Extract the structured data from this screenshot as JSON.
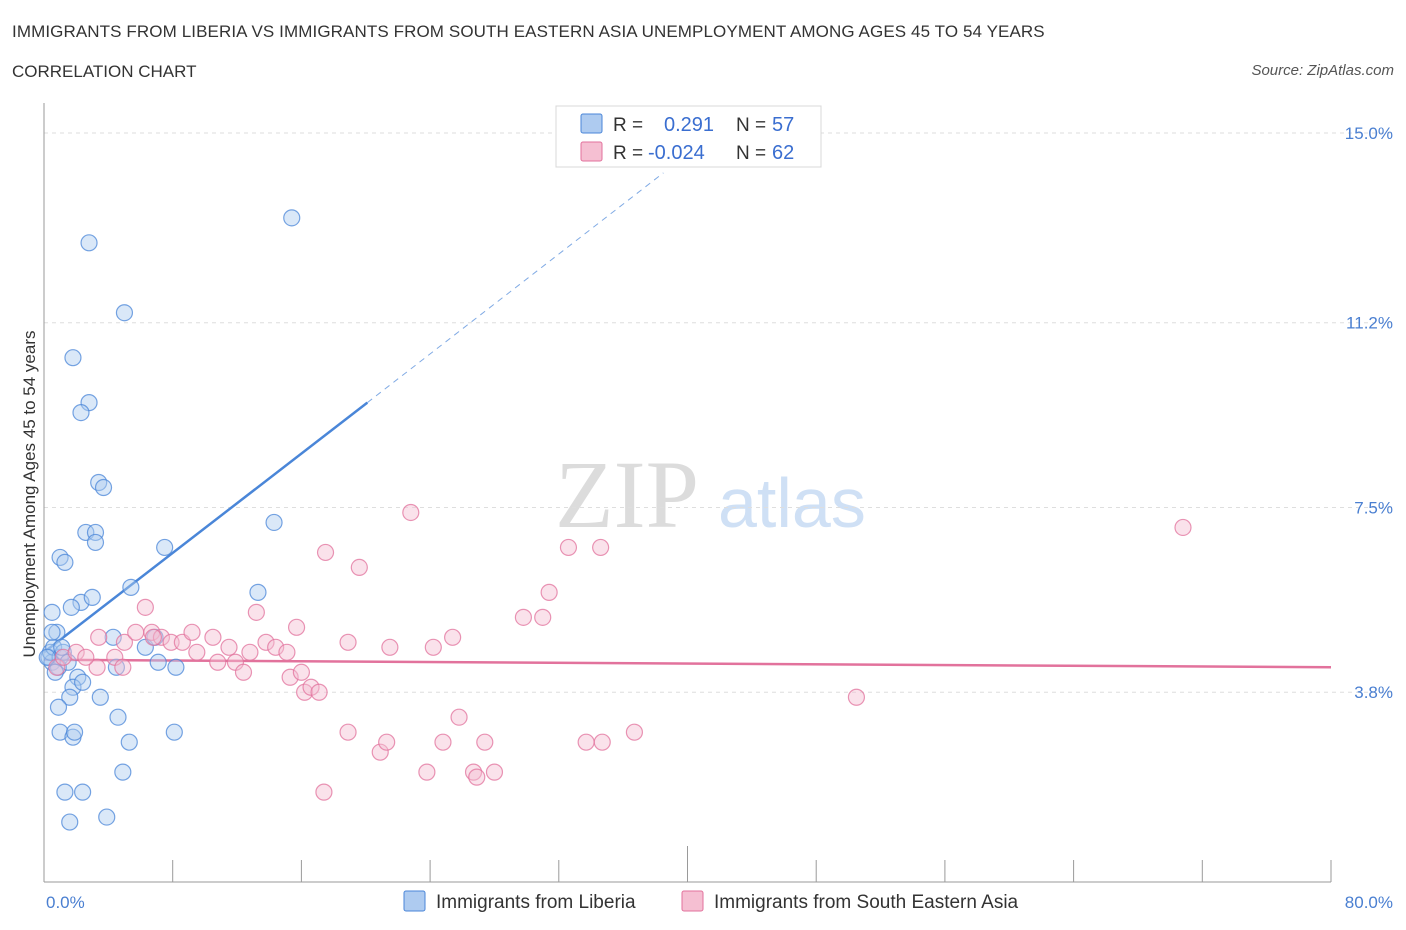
{
  "title": "IMMIGRANTS FROM LIBERIA VS IMMIGRANTS FROM SOUTH EASTERN ASIA UNEMPLOYMENT AMONG AGES 45 TO 54 YEARS",
  "subtitle": "CORRELATION CHART",
  "source": "Source: ZipAtlas.com",
  "watermark": {
    "zip": "ZIP",
    "atlas": "atlas"
  },
  "colors": {
    "blue": "#4a86d8",
    "blue_fill": "#aecbf0",
    "pink": "#e2729c",
    "pink_fill": "#f5bfd2",
    "tick": "#4a7fd1"
  },
  "legend": {
    "r_label": "R =",
    "n_label": "N =",
    "series1_r": "0.291",
    "series1_n": "57",
    "series2_r": "-0.024",
    "series2_n": "62"
  },
  "chart_data": {
    "type": "scatter",
    "title": "IMMIGRANTS FROM LIBERIA VS IMMIGRANTS FROM SOUTH EASTERN ASIA UNEMPLOYMENT AMONG AGES 45 TO 54 YEARS",
    "xlabel": "",
    "ylabel": "Unemployment Among Ages 45 to 54 years",
    "xlim": [
      0,
      80
    ],
    "ylim": [
      0,
      15.6
    ],
    "x_tick_labels": {
      "min": "0.0%",
      "max": "80.0%"
    },
    "y_ticks": [
      {
        "value": 3.8,
        "label": "3.8%"
      },
      {
        "value": 7.5,
        "label": "7.5%"
      },
      {
        "value": 11.2,
        "label": "11.2%"
      },
      {
        "value": 15.0,
        "label": "15.0%"
      }
    ],
    "series": [
      {
        "name": "Immigrants from Liberia",
        "color": "blue",
        "R": 0.291,
        "N": 57,
        "trend": {
          "x0": 0,
          "y0": 4.6,
          "x1": 20.1,
          "y1": 9.6,
          "dash_to_x": 38.5,
          "dash_to_y": 14.2
        },
        "points": [
          [
            0.3,
            4.5
          ],
          [
            0.5,
            4.4
          ],
          [
            0.4,
            4.6
          ],
          [
            0.6,
            4.7
          ],
          [
            0.8,
            5.0
          ],
          [
            0.5,
            5.4
          ],
          [
            1.0,
            4.5
          ],
          [
            0.9,
            4.3
          ],
          [
            1.2,
            4.6
          ],
          [
            0.7,
            4.2
          ],
          [
            1.5,
            4.4
          ],
          [
            1.1,
            4.7
          ],
          [
            2.1,
            4.1
          ],
          [
            1.8,
            3.9
          ],
          [
            2.4,
            4.0
          ],
          [
            1.6,
            3.7
          ],
          [
            3.5,
            3.7
          ],
          [
            4.6,
            3.3
          ],
          [
            0.9,
            3.5
          ],
          [
            1.0,
            3.0
          ],
          [
            1.8,
            2.9
          ],
          [
            1.9,
            3.0
          ],
          [
            5.3,
            2.8
          ],
          [
            8.1,
            3.0
          ],
          [
            4.9,
            2.2
          ],
          [
            1.3,
            1.8
          ],
          [
            2.4,
            1.8
          ],
          [
            1.6,
            1.2
          ],
          [
            3.9,
            1.3
          ],
          [
            2.3,
            5.6
          ],
          [
            1.7,
            5.5
          ],
          [
            3.0,
            5.7
          ],
          [
            5.4,
            5.9
          ],
          [
            4.3,
            4.9
          ],
          [
            4.5,
            4.3
          ],
          [
            6.3,
            4.7
          ],
          [
            7.1,
            4.4
          ],
          [
            8.2,
            4.3
          ],
          [
            0.5,
            5.0
          ],
          [
            1.0,
            6.5
          ],
          [
            1.3,
            6.4
          ],
          [
            2.6,
            7.0
          ],
          [
            3.2,
            7.0
          ],
          [
            3.2,
            6.8
          ],
          [
            3.4,
            8.0
          ],
          [
            3.7,
            7.9
          ],
          [
            7.5,
            6.7
          ],
          [
            13.3,
            5.8
          ],
          [
            14.3,
            7.2
          ],
          [
            2.8,
            9.6
          ],
          [
            2.3,
            9.4
          ],
          [
            1.8,
            10.5
          ],
          [
            5.0,
            11.4
          ],
          [
            2.8,
            12.8
          ],
          [
            15.4,
            13.3
          ],
          [
            6.9,
            4.9
          ],
          [
            0.2,
            4.5
          ]
        ]
      },
      {
        "name": "Immigrants from South Eastern Asia",
        "color": "pink",
        "R": -0.024,
        "N": 62,
        "trend": {
          "x0": 0,
          "y0": 4.45,
          "x1": 80,
          "y1": 4.3
        },
        "points": [
          [
            0.8,
            4.3
          ],
          [
            1.2,
            4.5
          ],
          [
            2.0,
            4.6
          ],
          [
            3.3,
            4.3
          ],
          [
            3.4,
            4.9
          ],
          [
            4.4,
            4.5
          ],
          [
            4.9,
            4.3
          ],
          [
            5.0,
            4.8
          ],
          [
            5.7,
            5.0
          ],
          [
            6.3,
            5.5
          ],
          [
            6.7,
            5.0
          ],
          [
            7.3,
            4.9
          ],
          [
            7.9,
            4.8
          ],
          [
            8.6,
            4.8
          ],
          [
            9.2,
            5.0
          ],
          [
            9.5,
            4.6
          ],
          [
            10.5,
            4.9
          ],
          [
            10.8,
            4.4
          ],
          [
            11.5,
            4.7
          ],
          [
            11.9,
            4.4
          ],
          [
            12.4,
            4.2
          ],
          [
            12.8,
            4.6
          ],
          [
            13.2,
            5.4
          ],
          [
            13.8,
            4.8
          ],
          [
            14.4,
            4.7
          ],
          [
            15.1,
            4.6
          ],
          [
            15.3,
            4.1
          ],
          [
            15.7,
            5.1
          ],
          [
            16.2,
            3.8
          ],
          [
            16.6,
            3.9
          ],
          [
            17.1,
            3.8
          ],
          [
            17.5,
            6.6
          ],
          [
            18.9,
            4.8
          ],
          [
            19.6,
            6.3
          ],
          [
            21.5,
            4.7
          ],
          [
            22.8,
            7.4
          ],
          [
            24.2,
            4.7
          ],
          [
            25.4,
            4.9
          ],
          [
            18.9,
            3.0
          ],
          [
            20.9,
            2.6
          ],
          [
            21.3,
            2.8
          ],
          [
            23.8,
            2.2
          ],
          [
            24.8,
            2.8
          ],
          [
            25.8,
            3.3
          ],
          [
            26.7,
            2.2
          ],
          [
            26.9,
            2.1
          ],
          [
            27.4,
            2.8
          ],
          [
            28.0,
            2.2
          ],
          [
            17.4,
            1.8
          ],
          [
            29.8,
            5.3
          ],
          [
            31.0,
            5.3
          ],
          [
            31.4,
            5.8
          ],
          [
            32.6,
            6.7
          ],
          [
            34.6,
            6.7
          ],
          [
            33.7,
            2.8
          ],
          [
            34.7,
            2.8
          ],
          [
            36.7,
            3.0
          ],
          [
            50.5,
            3.7
          ],
          [
            70.8,
            7.1
          ],
          [
            16.0,
            4.2
          ],
          [
            6.8,
            4.9
          ],
          [
            2.6,
            4.5
          ]
        ]
      }
    ]
  },
  "bottom_legend": {
    "series1": "Immigrants from Liberia",
    "series2": "Immigrants from South Eastern Asia"
  }
}
